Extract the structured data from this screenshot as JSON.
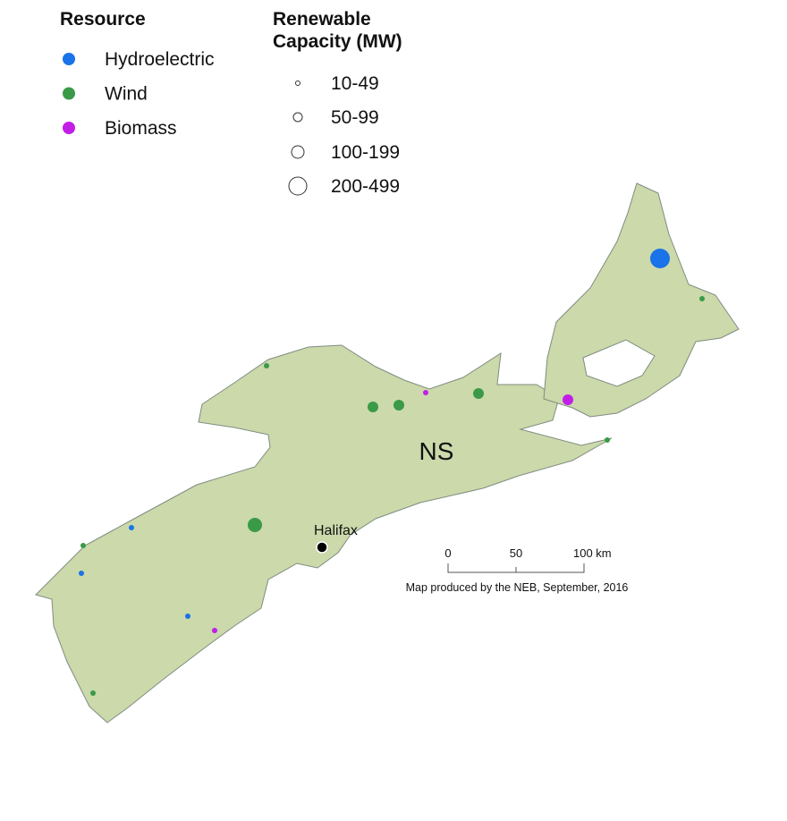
{
  "legend": {
    "resource": {
      "title": "Resource",
      "items": [
        {
          "name": "Hydroelectric",
          "color": "#1a73e8"
        },
        {
          "name": "Wind",
          "color": "#3a9a48"
        },
        {
          "name": "Biomass",
          "color": "#c21ee8"
        }
      ]
    },
    "capacity": {
      "title": "Renewable Capacity (MW)",
      "items": [
        "10-49",
        "50-99",
        "100-199",
        "200-499"
      ]
    }
  },
  "map": {
    "region_label": "NS",
    "city": "Halifax",
    "scale_bar": [
      "0",
      "50",
      "100 km"
    ],
    "credit": "Map produced by the NEB, September, 2016"
  }
}
